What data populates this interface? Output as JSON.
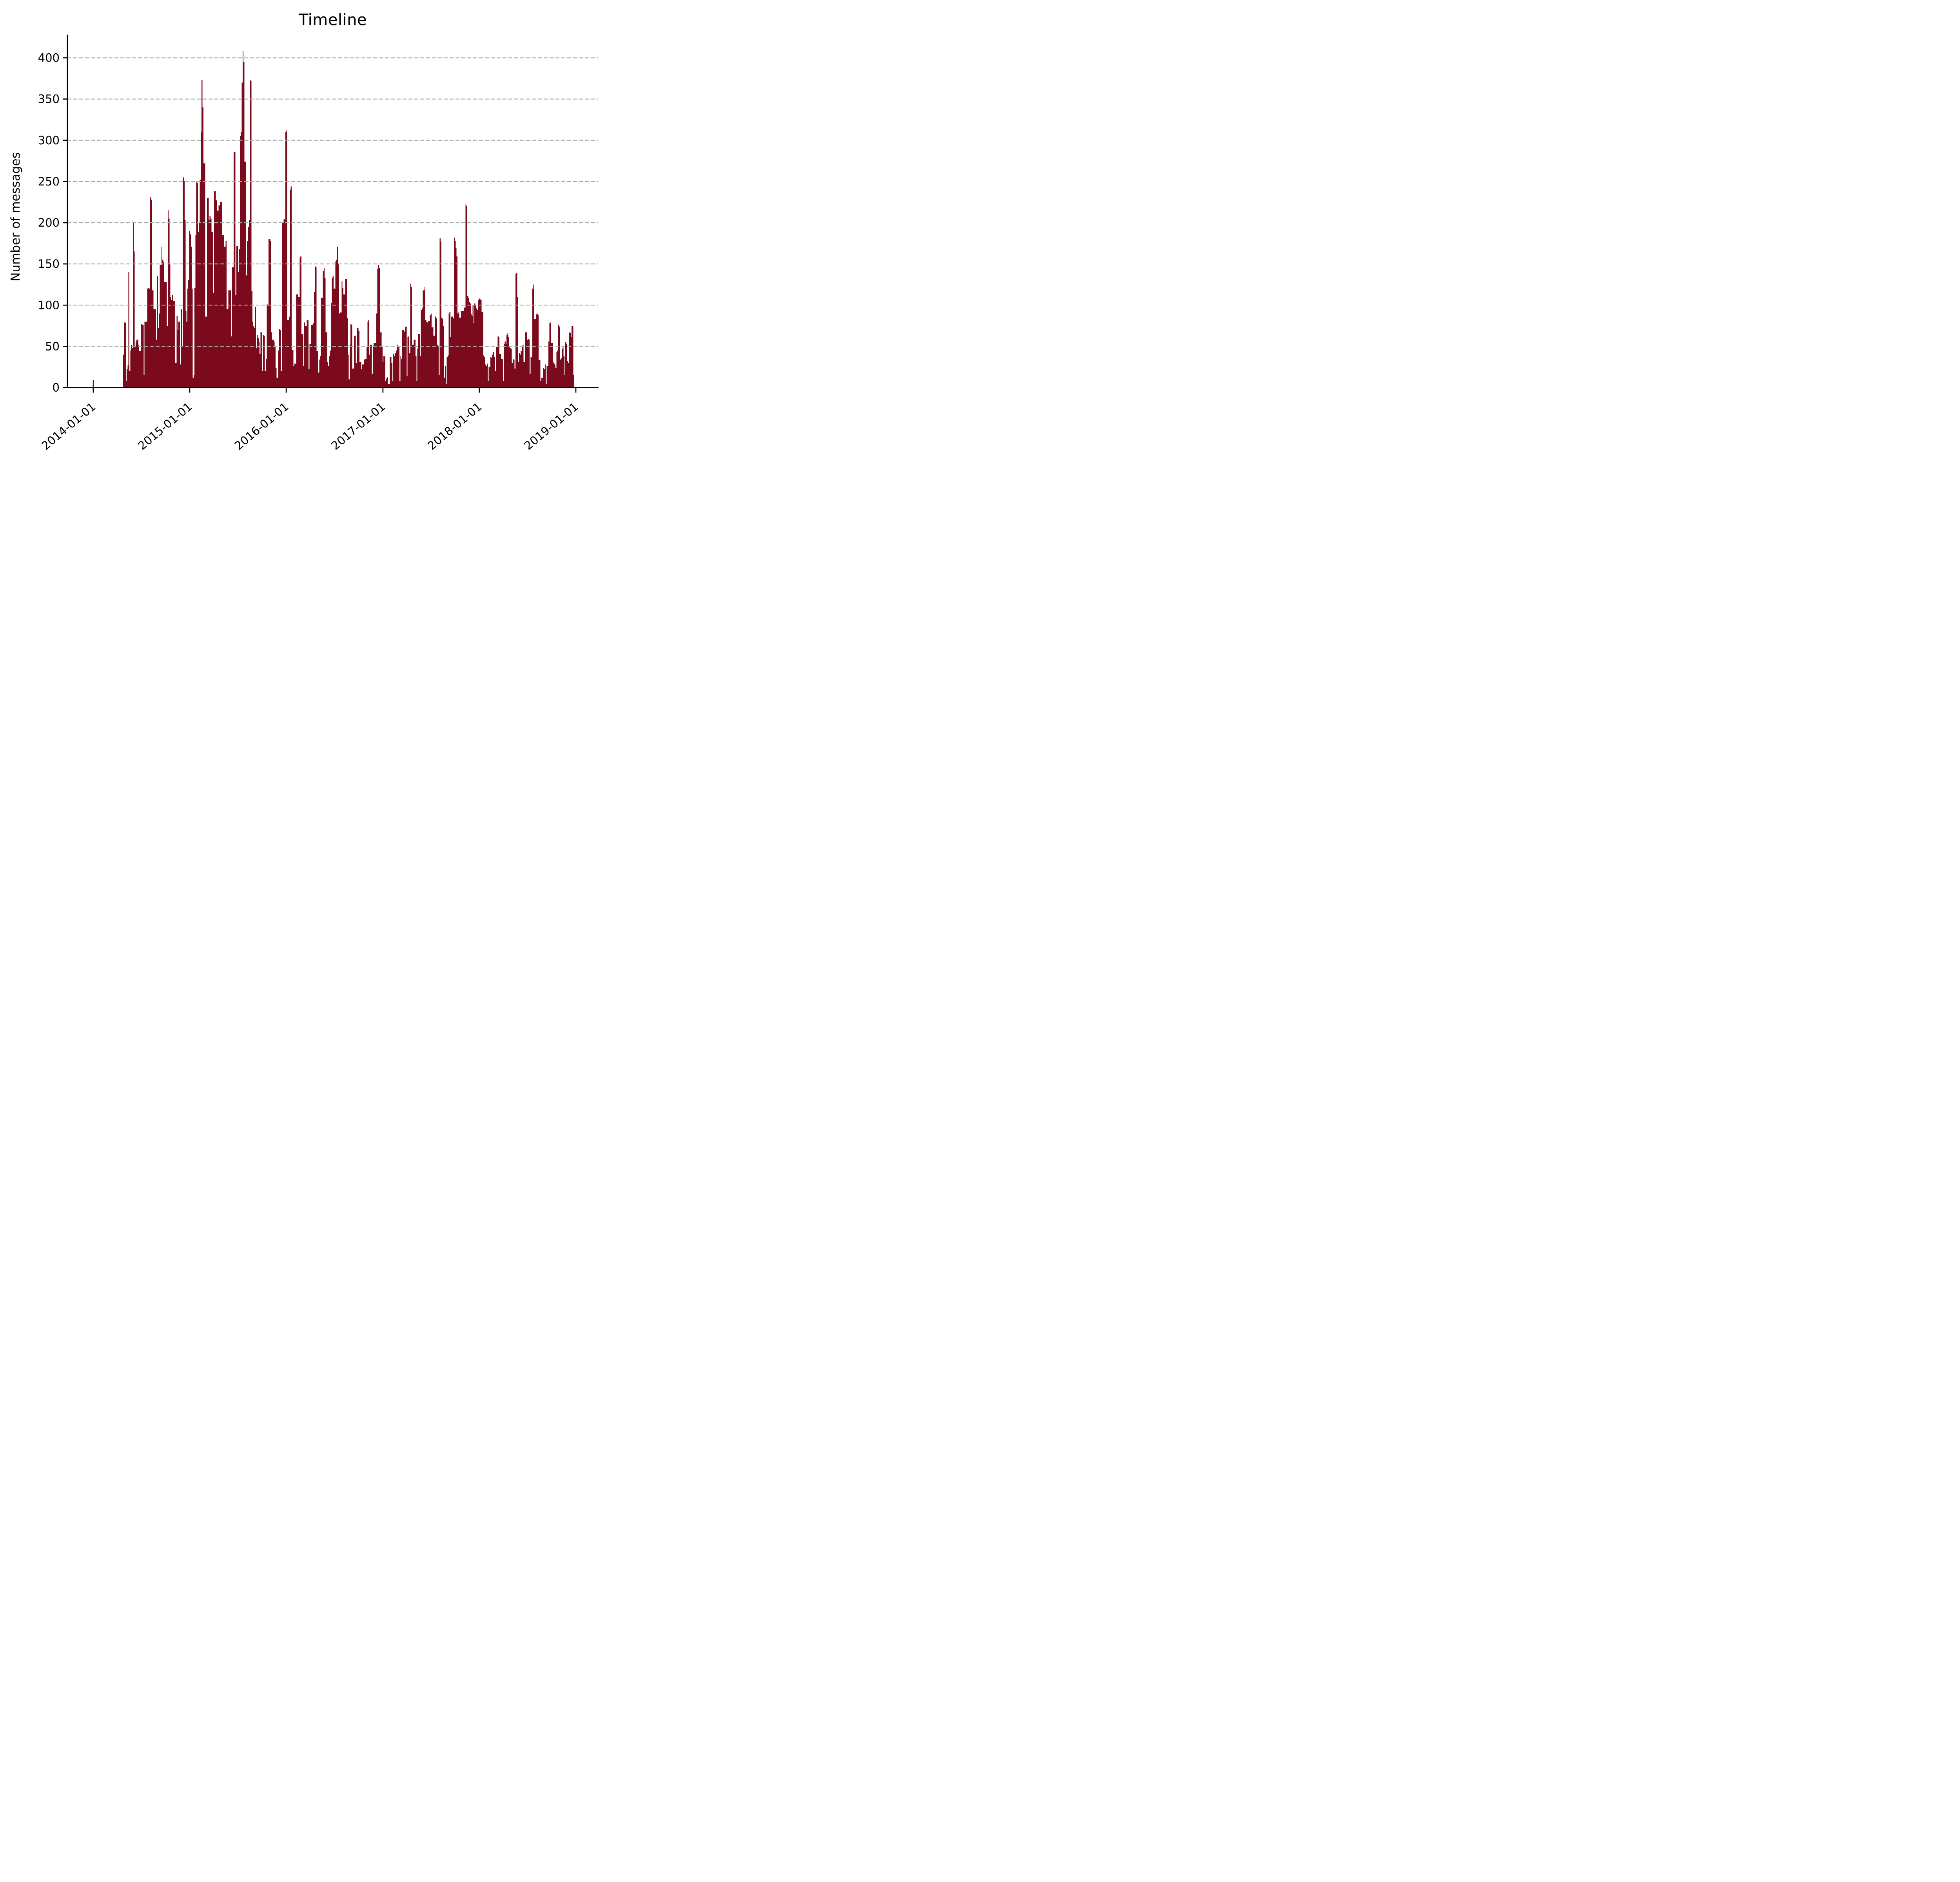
{
  "title": "Timeline",
  "ylabel": "Number of messages",
  "colors": {
    "bar": "#7a0a1c",
    "grid": "#ababab",
    "axis": "#000000",
    "text": "#000000",
    "background": "#ffffff"
  },
  "chart_data": {
    "type": "bar",
    "title": "Timeline",
    "xlabel": "",
    "ylabel": "Number of messages",
    "grid": "horizontal dashed, drawn above bars",
    "legend": "none",
    "y_ticks": [
      0,
      50,
      100,
      150,
      200,
      250,
      300,
      350,
      400
    ],
    "ylim": [
      0,
      423
    ],
    "x_tick_labels": [
      "2014-01-01",
      "2015-01-01",
      "2016-01-01",
      "2017-01-01",
      "2018-01-01",
      "2019-01-01"
    ],
    "x_tick_day_offsets": [
      0,
      365,
      730,
      1096,
      1461,
      1826
    ],
    "isolated_bar": {
      "date": "2014-01-01",
      "day_offset": 0,
      "value": 9
    },
    "bars_start_day_offset": 113,
    "bars_end_day_offset": 1820,
    "bin_size_days": 3.37,
    "notable_peaks": {
      "2015-07 max": 408,
      "2015-02": 373,
      "2015-08": 372,
      "2016-01-01": 312,
      "2015-06": 286,
      "2014-12": 255,
      "2016-01": 244,
      "2014-08": 231,
      "2017-11": 224,
      "2014-06": 201,
      "2017-08": 181,
      "2016-07": 171,
      "2018-05": 139,
      "2018-07": 125
    },
    "values": [
      40,
      79,
      79,
      8,
      22,
      27,
      140,
      20,
      45,
      52,
      48,
      201,
      165,
      50,
      55,
      58,
      58,
      52,
      44,
      44,
      77,
      76,
      76,
      15,
      80,
      80,
      80,
      120,
      121,
      120,
      231,
      228,
      118,
      118,
      95,
      95,
      95,
      58,
      135,
      72,
      90,
      149,
      149,
      171,
      155,
      152,
      128,
      128,
      128,
      75,
      215,
      205,
      150,
      110,
      106,
      112,
      105,
      105,
      30,
      30,
      87,
      70,
      80,
      80,
      28,
      95,
      50,
      255,
      251,
      203,
      93,
      80,
      120,
      130,
      190,
      186,
      171,
      120,
      12,
      15,
      121,
      185,
      250,
      248,
      189,
      200,
      252,
      310,
      373,
      340,
      272,
      272,
      86,
      86,
      230,
      230,
      203,
      208,
      205,
      189,
      189,
      115,
      238,
      238,
      227,
      215,
      214,
      221,
      221,
      225,
      225,
      185,
      185,
      171,
      171,
      178,
      95,
      95,
      118,
      118,
      118,
      62,
      146,
      146,
      286,
      286,
      112,
      172,
      172,
      140,
      168,
      305,
      310,
      370,
      408,
      395,
      274,
      274,
      136,
      178,
      195,
      203,
      373,
      372,
      117,
      80,
      75,
      72,
      98,
      48,
      64,
      60,
      55,
      41,
      67,
      67,
      20,
      64,
      63,
      20,
      35,
      101,
      100,
      180,
      180,
      178,
      67,
      58,
      58,
      56,
      49,
      24,
      12,
      12,
      45,
      71,
      70,
      20,
      200,
      200,
      204,
      204,
      310,
      312,
      82,
      82,
      86,
      240,
      244,
      46,
      46,
      26,
      29,
      29,
      113,
      113,
      110,
      110,
      158,
      160,
      65,
      65,
      26,
      79,
      75,
      75,
      82,
      82,
      22,
      53,
      53,
      76,
      76,
      78,
      116,
      147,
      146,
      44,
      44,
      18,
      34,
      38,
      109,
      109,
      141,
      145,
      133,
      67,
      67,
      31,
      26,
      38,
      45,
      103,
      133,
      135,
      120,
      120,
      153,
      155,
      171,
      150,
      90,
      91,
      91,
      129,
      121,
      113,
      113,
      132,
      132,
      84,
      40,
      10,
      52,
      77,
      76,
      23,
      23,
      63,
      63,
      30,
      72,
      72,
      69,
      31,
      31,
      22,
      28,
      28,
      34,
      35,
      35,
      49,
      80,
      82,
      40,
      52,
      52,
      17,
      51,
      54,
      54,
      54,
      90,
      144,
      149,
      145,
      67,
      67,
      49,
      31,
      38,
      38,
      8,
      11,
      13,
      4,
      4,
      37,
      37,
      30,
      8,
      41,
      38,
      42,
      45,
      52,
      49,
      49,
      8,
      38,
      35,
      70,
      70,
      68,
      74,
      74,
      14,
      61,
      62,
      42,
      126,
      122,
      52,
      52,
      58,
      58,
      38,
      8,
      47,
      65,
      65,
      38,
      94,
      96,
      118,
      118,
      122,
      82,
      80,
      79,
      81,
      81,
      88,
      90,
      73,
      73,
      63,
      63,
      86,
      84,
      52,
      50,
      15,
      181,
      177,
      85,
      83,
      75,
      12,
      26,
      4,
      37,
      39,
      90,
      92,
      61,
      86,
      86,
      84,
      182,
      178,
      169,
      159,
      90,
      92,
      85,
      85,
      93,
      93,
      93,
      97,
      97,
      222,
      220,
      111,
      109,
      104,
      102,
      89,
      87,
      100,
      78,
      102,
      100,
      96,
      94,
      106,
      108,
      107,
      106,
      92,
      92,
      39,
      37,
      28,
      26,
      29,
      8,
      25,
      25,
      37,
      36,
      40,
      43,
      37,
      20,
      49,
      50,
      63,
      61,
      41,
      41,
      35,
      35,
      8,
      53,
      56,
      53,
      64,
      66,
      61,
      49,
      48,
      47,
      30,
      35,
      33,
      23,
      138,
      139,
      110,
      31,
      42,
      40,
      44,
      49,
      52,
      31,
      31,
      67,
      67,
      58,
      59,
      58,
      17,
      37,
      37,
      120,
      125,
      83,
      83,
      89,
      90,
      88,
      33,
      33,
      8,
      12,
      12,
      24,
      22,
      28,
      4,
      26,
      26,
      56,
      78,
      79,
      54,
      54,
      31,
      29,
      27,
      24,
      43,
      45,
      76,
      74,
      34,
      36,
      47,
      49,
      38,
      15,
      55,
      53,
      32,
      30,
      67,
      66,
      61,
      75,
      75,
      15
    ]
  }
}
